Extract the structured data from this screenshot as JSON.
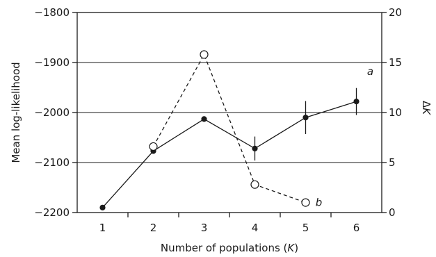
{
  "chart_data": {
    "type": "line",
    "xlabel_prefix": "Number of populations (",
    "xlabel_var": "K",
    "xlabel_suffix": ")",
    "ylabel_left": "Mean log-likelihood",
    "ylabel_right_delta": "Δ",
    "ylabel_right_var": "K",
    "x_ticks": [
      1,
      2,
      3,
      4,
      5,
      6
    ],
    "x_ticks_text": [
      "1",
      "2",
      "3",
      "4",
      "5",
      "6"
    ],
    "xlim": [
      0.5,
      6.5
    ],
    "y_left": {
      "lim": [
        -2200,
        -1800
      ],
      "ticks": [
        -2200,
        -2100,
        -2000,
        -1900,
        -1800
      ],
      "ticks_text": [
        "−2200",
        "−2100",
        "−2000",
        "−1900",
        "−1800"
      ]
    },
    "y_right": {
      "lim": [
        0,
        20
      ],
      "ticks": [
        0,
        5,
        10,
        15,
        20
      ],
      "ticks_text": [
        "0",
        "5",
        "10",
        "15",
        "20"
      ]
    },
    "grid": "horizontal",
    "series": [
      {
        "label": "a",
        "axis": "left",
        "line_style": "solid",
        "marker": "filled-circle",
        "x": [
          1,
          2,
          3,
          4,
          5,
          6
        ],
        "y": [
          -2190,
          -2077,
          -2013,
          -2072,
          -2010,
          -1978
        ],
        "error": [
          0,
          0,
          0,
          24,
          33,
          27
        ]
      },
      {
        "label": "b",
        "axis": "right",
        "line_style": "dashed",
        "marker": "open-circle",
        "x": [
          2,
          3,
          4,
          5
        ],
        "y": [
          6.6,
          15.8,
          2.8,
          1.0
        ]
      }
    ]
  }
}
